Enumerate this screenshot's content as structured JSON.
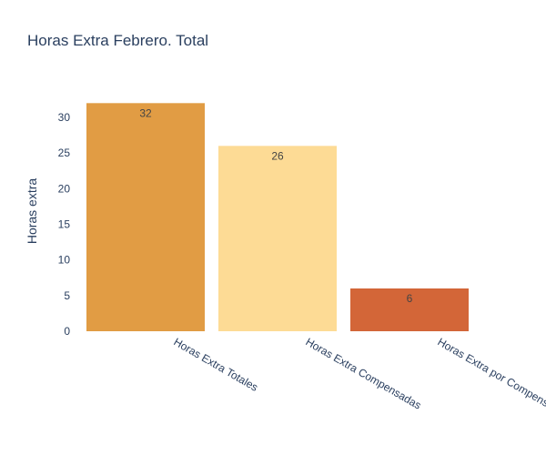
{
  "chart_data": {
    "type": "bar",
    "title": "Horas Extra Febrero. Total",
    "xlabel": "",
    "ylabel": "Horas extra",
    "categories": [
      "Horas Extra Totales",
      "Horas Extra Compensadas",
      "Horas Extra por Compensar"
    ],
    "values": [
      32,
      26,
      6
    ],
    "value_labels": [
      "32",
      "26",
      "6"
    ],
    "bar_colors": [
      "#e19c44",
      "#fddb95",
      "#d36638"
    ],
    "ylim": [
      0,
      33.7
    ],
    "yticks": [
      0,
      5,
      10,
      15,
      20,
      25,
      30
    ],
    "ytick_labels": [
      "0",
      "5",
      "10",
      "15",
      "20",
      "25",
      "30"
    ],
    "grid": false,
    "legend": "none"
  }
}
